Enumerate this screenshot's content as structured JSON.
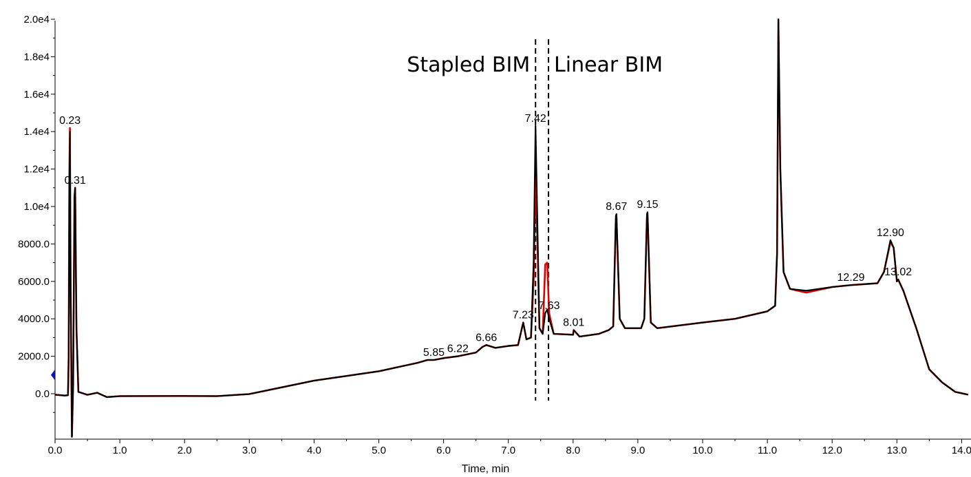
{
  "chart_data": {
    "type": "line",
    "title": "",
    "xlabel": "Time, min",
    "ylabel": "",
    "xlim": [
      0.0,
      14.1
    ],
    "ylim": [
      -2300,
      20000
    ],
    "grid": false,
    "x_ticks": [
      "0.0",
      "1.0",
      "2.0",
      "3.0",
      "4.0",
      "5.0",
      "6.0",
      "7.0",
      "8.0",
      "9.0",
      "10.0",
      "11.0",
      "12.0",
      "13.0",
      "14.0"
    ],
    "y_ticks": [
      "0.0",
      "2000.0",
      "4000.0",
      "6000.0",
      "8000.0",
      "1.0e4",
      "1.2e4",
      "1.4e4",
      "1.6e4",
      "1.8e4",
      "2.0e4"
    ],
    "series": [
      {
        "color": "#e00000",
        "points": [
          [
            0.0,
            -50
          ],
          [
            0.15,
            -100
          ],
          [
            0.2,
            -80
          ],
          [
            0.21,
            2000
          ],
          [
            0.22,
            11500
          ],
          [
            0.23,
            14200
          ],
          [
            0.24,
            6000
          ],
          [
            0.26,
            -2300
          ],
          [
            0.28,
            500
          ],
          [
            0.3,
            10500
          ],
          [
            0.31,
            11000
          ],
          [
            0.33,
            3500
          ],
          [
            0.36,
            100
          ],
          [
            0.5,
            -60
          ],
          [
            0.65,
            50
          ],
          [
            0.8,
            -180
          ],
          [
            1.0,
            -130
          ],
          [
            2.0,
            -120
          ],
          [
            2.5,
            -130
          ],
          [
            3.0,
            -20
          ],
          [
            4.0,
            700
          ],
          [
            5.0,
            1200
          ],
          [
            5.6,
            1650
          ],
          [
            5.75,
            1800
          ],
          [
            5.85,
            1800
          ],
          [
            6.0,
            1900
          ],
          [
            6.22,
            2000
          ],
          [
            6.5,
            2200
          ],
          [
            6.6,
            2500
          ],
          [
            6.66,
            2600
          ],
          [
            6.8,
            2450
          ],
          [
            7.0,
            2550
          ],
          [
            7.15,
            2600
          ],
          [
            7.23,
            3800
          ],
          [
            7.28,
            2900
          ],
          [
            7.35,
            3000
          ],
          [
            7.39,
            6000
          ],
          [
            7.42,
            11600
          ],
          [
            7.45,
            8000
          ],
          [
            7.48,
            3500
          ],
          [
            7.53,
            3200
          ],
          [
            7.57,
            6900
          ],
          [
            7.6,
            7000
          ],
          [
            7.63,
            4300
          ],
          [
            7.7,
            3200
          ],
          [
            8.0,
            3150
          ],
          [
            8.01,
            3400
          ],
          [
            8.1,
            3050
          ],
          [
            8.4,
            3200
          ],
          [
            8.55,
            3400
          ],
          [
            8.62,
            3600
          ],
          [
            8.66,
            9300
          ],
          [
            8.67,
            9400
          ],
          [
            8.72,
            4000
          ],
          [
            8.8,
            3500
          ],
          [
            9.05,
            3500
          ],
          [
            9.1,
            4000
          ],
          [
            9.14,
            9400
          ],
          [
            9.15,
            9500
          ],
          [
            9.2,
            3800
          ],
          [
            9.3,
            3500
          ],
          [
            10.0,
            3800
          ],
          [
            10.5,
            4000
          ],
          [
            11.0,
            4400
          ],
          [
            11.12,
            4700
          ],
          [
            11.15,
            7500
          ],
          [
            11.17,
            20000
          ],
          [
            11.2,
            12000
          ],
          [
            11.25,
            6500
          ],
          [
            11.35,
            5600
          ],
          [
            11.6,
            5400
          ],
          [
            12.0,
            5700
          ],
          [
            12.29,
            5800
          ],
          [
            12.7,
            5900
          ],
          [
            12.8,
            6500
          ],
          [
            12.9,
            8100
          ],
          [
            12.95,
            7800
          ],
          [
            13.0,
            6000
          ],
          [
            13.02,
            6100
          ],
          [
            13.1,
            5500
          ],
          [
            13.3,
            3500
          ],
          [
            13.5,
            1300
          ],
          [
            13.7,
            600
          ],
          [
            13.9,
            100
          ],
          [
            14.1,
            -50
          ]
        ]
      },
      {
        "color": "#000000",
        "points": [
          [
            0.0,
            -50
          ],
          [
            0.15,
            -100
          ],
          [
            0.2,
            -80
          ],
          [
            0.21,
            2000
          ],
          [
            0.22,
            10000
          ],
          [
            0.23,
            14000
          ],
          [
            0.24,
            6000
          ],
          [
            0.26,
            -2300
          ],
          [
            0.28,
            500
          ],
          [
            0.3,
            10500
          ],
          [
            0.31,
            11000
          ],
          [
            0.33,
            3500
          ],
          [
            0.36,
            100
          ],
          [
            0.5,
            -60
          ],
          [
            0.65,
            50
          ],
          [
            0.8,
            -180
          ],
          [
            1.0,
            -130
          ],
          [
            2.0,
            -120
          ],
          [
            2.5,
            -130
          ],
          [
            3.0,
            -20
          ],
          [
            4.0,
            700
          ],
          [
            5.0,
            1200
          ],
          [
            5.6,
            1650
          ],
          [
            5.75,
            1800
          ],
          [
            5.85,
            1800
          ],
          [
            6.0,
            1900
          ],
          [
            6.22,
            2000
          ],
          [
            6.5,
            2200
          ],
          [
            6.6,
            2500
          ],
          [
            6.66,
            2600
          ],
          [
            6.8,
            2450
          ],
          [
            7.0,
            2550
          ],
          [
            7.15,
            2600
          ],
          [
            7.23,
            3800
          ],
          [
            7.28,
            2900
          ],
          [
            7.35,
            3000
          ],
          [
            7.39,
            7000
          ],
          [
            7.42,
            14300
          ],
          [
            7.45,
            9000
          ],
          [
            7.48,
            3500
          ],
          [
            7.53,
            3200
          ],
          [
            7.57,
            4300
          ],
          [
            7.6,
            4500
          ],
          [
            7.63,
            4000
          ],
          [
            7.7,
            3200
          ],
          [
            8.0,
            3150
          ],
          [
            8.01,
            3400
          ],
          [
            8.1,
            3050
          ],
          [
            8.4,
            3200
          ],
          [
            8.55,
            3400
          ],
          [
            8.62,
            3600
          ],
          [
            8.66,
            9500
          ],
          [
            8.67,
            9600
          ],
          [
            8.72,
            4000
          ],
          [
            8.8,
            3500
          ],
          [
            9.05,
            3500
          ],
          [
            9.1,
            4000
          ],
          [
            9.14,
            9600
          ],
          [
            9.15,
            9700
          ],
          [
            9.2,
            3800
          ],
          [
            9.3,
            3500
          ],
          [
            10.0,
            3800
          ],
          [
            10.5,
            4000
          ],
          [
            11.0,
            4400
          ],
          [
            11.12,
            4700
          ],
          [
            11.15,
            7500
          ],
          [
            11.17,
            20000
          ],
          [
            11.2,
            12000
          ],
          [
            11.25,
            6500
          ],
          [
            11.35,
            5600
          ],
          [
            11.6,
            5500
          ],
          [
            12.0,
            5700
          ],
          [
            12.29,
            5800
          ],
          [
            12.7,
            5900
          ],
          [
            12.8,
            6500
          ],
          [
            12.9,
            8200
          ],
          [
            12.95,
            7800
          ],
          [
            13.0,
            6000
          ],
          [
            13.02,
            6100
          ],
          [
            13.1,
            5500
          ],
          [
            13.3,
            3500
          ],
          [
            13.5,
            1300
          ],
          [
            13.7,
            600
          ],
          [
            13.9,
            100
          ],
          [
            14.1,
            -50
          ]
        ]
      }
    ],
    "peak_labels": [
      {
        "text": "0.23",
        "x": 0.23,
        "y": 14200
      },
      {
        "text": "0.31",
        "x": 0.31,
        "y": 11000
      },
      {
        "text": "5.85",
        "x": 5.85,
        "y": 1800
      },
      {
        "text": "6.22",
        "x": 6.22,
        "y": 2000
      },
      {
        "text": "6.66",
        "x": 6.66,
        "y": 2600
      },
      {
        "text": "7.23",
        "x": 7.23,
        "y": 3800
      },
      {
        "text": "7.42",
        "x": 7.42,
        "y": 14300
      },
      {
        "text": "7.63",
        "x": 7.63,
        "y": 4300
      },
      {
        "text": "8.01",
        "x": 8.01,
        "y": 3400
      },
      {
        "text": "8.67",
        "x": 8.67,
        "y": 9600
      },
      {
        "text": "9.15",
        "x": 9.15,
        "y": 9700
      },
      {
        "text": "12.29",
        "x": 12.29,
        "y": 5800
      },
      {
        "text": "12.90",
        "x": 12.9,
        "y": 8200
      },
      {
        "text": "13.02",
        "x": 13.02,
        "y": 6100
      }
    ],
    "dashed_lines_x": [
      7.42,
      7.62
    ],
    "annotations": [
      {
        "text": "Stapled BIM",
        "x": 7.42,
        "y": 17200,
        "anchor": "end"
      },
      {
        "text": "Linear BIM",
        "x": 7.62,
        "y": 17200,
        "anchor": "start"
      }
    ],
    "marker_color": "#1010c0"
  }
}
